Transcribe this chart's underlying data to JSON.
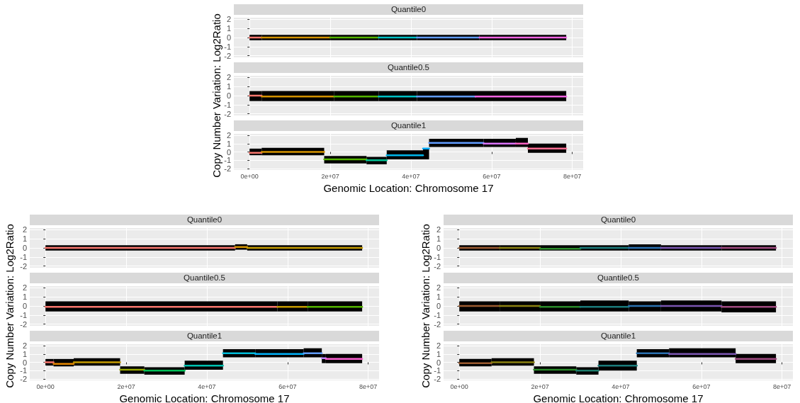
{
  "chart_data": [
    {
      "type": "line",
      "title": "Quantile0",
      "xlim": [
        -3900000,
        82700000
      ],
      "ylim": [
        -2.2,
        2.2
      ],
      "xticks": [
        {
          "value": 0,
          "label": null
        },
        {
          "value": 20000000,
          "label": null
        },
        {
          "value": 40000000,
          "label": null
        },
        {
          "value": 60000000,
          "label": null
        },
        {
          "value": 80000000,
          "label": null
        }
      ],
      "yticks": [
        -2,
        -1,
        0,
        1,
        2
      ],
      "grid": true,
      "tick_labels": "y",
      "marker": "none",
      "series": [
        {
          "color": "#f8766d",
          "x": [
            0,
            3000000
          ],
          "values": [
            0,
            0
          ],
          "lower": [
            -0.3,
            -0.3
          ],
          "upper": [
            0.3,
            0.3
          ]
        },
        {
          "color": "#d39200",
          "x": [
            3000000,
            20000000
          ],
          "values": [
            0,
            0
          ],
          "lower": [
            -0.3,
            -0.3
          ],
          "upper": [
            0.3,
            0.3
          ]
        },
        {
          "color": "#53b400",
          "x": [
            20000000,
            32000000
          ],
          "values": [
            0,
            0
          ],
          "lower": [
            -0.3,
            -0.3
          ],
          "upper": [
            0.3,
            0.3
          ]
        },
        {
          "color": "#00bfc4",
          "x": [
            32000000,
            41500000
          ],
          "values": [
            0,
            0
          ],
          "lower": [
            -0.3,
            -0.3
          ],
          "upper": [
            0.3,
            0.3
          ]
        },
        {
          "color": "#619cff",
          "x": [
            41500000,
            57000000
          ],
          "values": [
            0,
            0
          ],
          "lower": [
            -0.3,
            -0.3
          ],
          "upper": [
            0.3,
            0.3
          ]
        },
        {
          "color": "#f564e3",
          "x": [
            57000000,
            78500000
          ],
          "values": [
            0,
            0
          ],
          "lower": [
            -0.3,
            -0.3
          ],
          "upper": [
            0.3,
            0.3
          ]
        }
      ]
    },
    {
      "type": "line",
      "title": "Quantile0.5",
      "ylabel": "Copy Number Variation: Log2Ratio",
      "xlim": [
        -3900000,
        82700000
      ],
      "ylim": [
        -2.2,
        2.2
      ],
      "xticks": [
        {
          "value": 0,
          "label": null
        },
        {
          "value": 20000000,
          "label": null
        },
        {
          "value": 40000000,
          "label": null
        },
        {
          "value": 60000000,
          "label": null
        },
        {
          "value": 80000000,
          "label": null
        }
      ],
      "yticks": [
        -2,
        -1,
        0,
        1,
        2
      ],
      "grid": true,
      "tick_labels": "y",
      "marker": "none",
      "series": [
        {
          "color": "#f8766d",
          "x": [
            0,
            3000000
          ],
          "values": [
            0,
            0
          ],
          "lower": [
            -0.6,
            -0.6
          ],
          "upper": [
            0.5,
            0.5
          ]
        },
        {
          "color": "#d39200",
          "x": [
            3000000,
            21000000
          ],
          "values": [
            -0.1,
            -0.1
          ],
          "lower": [
            -0.6,
            -0.6
          ],
          "upper": [
            0.5,
            0.5
          ]
        },
        {
          "color": "#53b400",
          "x": [
            21000000,
            32000000
          ],
          "values": [
            -0.1,
            -0.1
          ],
          "lower": [
            -0.6,
            -0.6
          ],
          "upper": [
            0.5,
            0.5
          ]
        },
        {
          "color": "#00bfc4",
          "x": [
            32000000,
            41500000
          ],
          "values": [
            -0.1,
            -0.1
          ],
          "lower": [
            -0.6,
            -0.6
          ],
          "upper": [
            0.5,
            0.5
          ]
        },
        {
          "color": "#619cff",
          "x": [
            41500000,
            56000000
          ],
          "values": [
            -0.1,
            -0.1
          ],
          "lower": [
            -0.6,
            -0.6
          ],
          "upper": [
            0.5,
            0.5
          ]
        },
        {
          "color": "#f564e3",
          "x": [
            56000000,
            78500000
          ],
          "values": [
            -0.1,
            -0.1
          ],
          "lower": [
            -0.6,
            -0.6
          ],
          "upper": [
            0.5,
            0.5
          ]
        }
      ]
    },
    {
      "type": "line",
      "title": "Quantile1",
      "xlabel": "Genomic Location: Chromosome 17",
      "xlim": [
        -3900000,
        82700000
      ],
      "ylim": [
        -2.2,
        2.2
      ],
      "xticks": [
        {
          "value": 0,
          "label": "0e+00"
        },
        {
          "value": 20000000,
          "label": "2e+07"
        },
        {
          "value": 40000000,
          "label": "4e+07"
        },
        {
          "value": 60000000,
          "label": "6e+07"
        },
        {
          "value": 80000000,
          "label": "8e+07"
        }
      ],
      "yticks": [
        -2,
        -1,
        0,
        1,
        2
      ],
      "grid": true,
      "marker": "none",
      "series": [
        {
          "color": "#f8766d",
          "x": [
            0,
            3000000
          ],
          "values": [
            -0.1,
            -0.1
          ],
          "lower": [
            -0.4,
            -0.4
          ],
          "upper": [
            0.4,
            0.4
          ]
        },
        {
          "color": "#d39200",
          "x": [
            3000000,
            18500000
          ],
          "values": [
            0,
            0
          ],
          "lower": [
            -0.4,
            -0.4
          ],
          "upper": [
            0.5,
            0.5
          ]
        },
        {
          "color": "#53b400",
          "x": [
            18500000,
            29000000
          ],
          "values": [
            -0.9,
            -0.9
          ],
          "lower": [
            -1.4,
            -1.4
          ],
          "upper": [
            -0.5,
            -0.5
          ]
        },
        {
          "color": "#00c094",
          "x": [
            29000000,
            34000000
          ],
          "values": [
            -1,
            -1
          ],
          "lower": [
            -1.5,
            -1.5
          ],
          "upper": [
            -0.6,
            -0.6
          ]
        },
        {
          "color": "#00b6eb",
          "x": [
            34000000,
            43000000
          ],
          "values": [
            -0.4,
            -0.4
          ],
          "lower": [
            -0.9,
            -0.9
          ],
          "upper": [
            0.2,
            0.2
          ]
        },
        {
          "color": "#00a9ff",
          "x": [
            43000000,
            44500000
          ],
          "values": [
            0.4,
            0.4
          ],
          "lower": [
            -0.9,
            -0.9
          ],
          "upper": [
            0.3,
            0.3
          ]
        },
        {
          "color": "#619cff",
          "x": [
            44500000,
            58000000
          ],
          "values": [
            1.1,
            1.1
          ],
          "lower": [
            0.6,
            0.6
          ],
          "upper": [
            1.6,
            1.6
          ]
        },
        {
          "color": "#db72fb",
          "x": [
            58000000,
            66000000
          ],
          "values": [
            1,
            1
          ],
          "lower": [
            0.6,
            0.6
          ],
          "upper": [
            1.6,
            1.6
          ]
        },
        {
          "color": "#ff61c3",
          "x": [
            66000000,
            69000000
          ],
          "values": [
            1,
            1
          ],
          "lower": [
            0.6,
            0.6
          ],
          "upper": [
            1.7,
            1.7
          ]
        },
        {
          "color": "#ff6c91",
          "x": [
            69000000,
            78500000
          ],
          "values": [
            0.4,
            0.4
          ],
          "lower": [
            -0.1,
            -0.1
          ],
          "upper": [
            1,
            1
          ]
        }
      ]
    },
    {
      "type": "line",
      "title": "Quantile0",
      "xlim": [
        -3900000,
        82700000
      ],
      "ylim": [
        -2.2,
        2.2
      ],
      "xticks": [
        {
          "value": 0,
          "label": null
        },
        {
          "value": 20000000,
          "label": null
        },
        {
          "value": 40000000,
          "label": null
        },
        {
          "value": 60000000,
          "label": null
        },
        {
          "value": 80000000,
          "label": null
        }
      ],
      "yticks": [
        -2,
        -1,
        0,
        1,
        2
      ],
      "grid": true,
      "tick_labels": "y",
      "marker": "none",
      "series": [
        {
          "color": "#f8766d",
          "x": [
            0,
            47000000
          ],
          "values": [
            0,
            0
          ],
          "lower": [
            -0.3,
            -0.3
          ],
          "upper": [
            0.3,
            0.3
          ]
        },
        {
          "color": "#d39200",
          "x": [
            47000000,
            50000000
          ],
          "values": [
            0.1,
            0.1
          ],
          "lower": [
            -0.2,
            -0.2
          ],
          "upper": [
            0.4,
            0.4
          ]
        },
        {
          "color": "#c49a00",
          "x": [
            50000000,
            78500000
          ],
          "values": [
            0,
            0
          ],
          "lower": [
            -0.3,
            -0.3
          ],
          "upper": [
            0.3,
            0.3
          ]
        }
      ]
    },
    {
      "type": "line",
      "title": "Quantile0.5",
      "ylabel": "Copy Number Variation: Log2Ratio",
      "xlim": [
        -3900000,
        82700000
      ],
      "ylim": [
        -2.2,
        2.2
      ],
      "xticks": [
        {
          "value": 0,
          "label": null
        },
        {
          "value": 20000000,
          "label": null
        },
        {
          "value": 40000000,
          "label": null
        },
        {
          "value": 60000000,
          "label": null
        },
        {
          "value": 80000000,
          "label": null
        }
      ],
      "yticks": [
        -2,
        -1,
        0,
        1,
        2
      ],
      "grid": true,
      "tick_labels": "y",
      "marker": "none",
      "series": [
        {
          "color": "#f8766d",
          "x": [
            0,
            57500000
          ],
          "values": [
            -0.1,
            -0.1
          ],
          "lower": [
            -0.6,
            -0.6
          ],
          "upper": [
            0.5,
            0.5
          ]
        },
        {
          "color": "#c49a00",
          "x": [
            57500000,
            65000000
          ],
          "values": [
            -0.1,
            -0.1
          ],
          "lower": [
            -0.6,
            -0.6
          ],
          "upper": [
            0.5,
            0.5
          ]
        },
        {
          "color": "#53b400",
          "x": [
            65000000,
            78500000
          ],
          "values": [
            -0.1,
            -0.1
          ],
          "lower": [
            -0.6,
            -0.6
          ],
          "upper": [
            0.5,
            0.5
          ]
        }
      ]
    },
    {
      "type": "line",
      "title": "Quantile1",
      "xlabel": "Genomic Location: Chromosome 17",
      "xlim": [
        -3900000,
        82700000
      ],
      "ylim": [
        -2.2,
        2.2
      ],
      "xticks": [
        {
          "value": 0,
          "label": "0e+00"
        },
        {
          "value": 20000000,
          "label": "2e+07"
        },
        {
          "value": 40000000,
          "label": "4e+07"
        },
        {
          "value": 60000000,
          "label": "6e+07"
        },
        {
          "value": 80000000,
          "label": "8e+07"
        }
      ],
      "yticks": [
        -2,
        -1,
        0,
        1,
        2
      ],
      "grid": true,
      "marker": "none",
      "series": [
        {
          "color": "#f8766d",
          "x": [
            0,
            2000000
          ],
          "values": [
            0,
            0
          ],
          "lower": [
            -0.4,
            -0.4
          ],
          "upper": [
            0.4,
            0.4
          ]
        },
        {
          "color": "#e58700",
          "x": [
            2000000,
            7000000
          ],
          "values": [
            -0.2,
            -0.2
          ],
          "lower": [
            -0.5,
            -0.5
          ],
          "upper": [
            0.4,
            0.4
          ]
        },
        {
          "color": "#c49a00",
          "x": [
            7000000,
            18500000
          ],
          "values": [
            0,
            0
          ],
          "lower": [
            -0.4,
            -0.4
          ],
          "upper": [
            0.5,
            0.5
          ]
        },
        {
          "color": "#99a800",
          "x": [
            18500000,
            24500000
          ],
          "values": [
            -0.9,
            -0.9
          ],
          "lower": [
            -1.4,
            -1.4
          ],
          "upper": [
            -0.5,
            -0.5
          ]
        },
        {
          "color": "#00bc56",
          "x": [
            24500000,
            34500000
          ],
          "values": [
            -1,
            -1
          ],
          "lower": [
            -1.5,
            -1.5
          ],
          "upper": [
            -0.6,
            -0.6
          ]
        },
        {
          "color": "#00c0af",
          "x": [
            34500000,
            44000000
          ],
          "values": [
            -0.4,
            -0.4
          ],
          "lower": [
            -0.9,
            -0.9
          ],
          "upper": [
            0.2,
            0.2
          ]
        },
        {
          "color": "#00bcd8",
          "x": [
            44000000,
            52000000
          ],
          "values": [
            1.1,
            1.1
          ],
          "lower": [
            0.6,
            0.6
          ],
          "upper": [
            1.6,
            1.6
          ]
        },
        {
          "color": "#00b0f6",
          "x": [
            52000000,
            64000000
          ],
          "values": [
            1,
            1
          ],
          "lower": [
            0.6,
            0.6
          ],
          "upper": [
            1.6,
            1.6
          ]
        },
        {
          "color": "#619cff",
          "x": [
            64000000,
            68500000
          ],
          "values": [
            1.1,
            1.1
          ],
          "lower": [
            0.6,
            0.6
          ],
          "upper": [
            1.7,
            1.7
          ]
        },
        {
          "color": "#b983ff",
          "x": [
            68500000,
            69500000
          ],
          "values": [
            0.5,
            0.5
          ],
          "lower": [
            -0.1,
            -0.1
          ],
          "upper": [
            1,
            1
          ]
        },
        {
          "color": "#fd61d1",
          "x": [
            69500000,
            78500000
          ],
          "values": [
            0.4,
            0.4
          ],
          "lower": [
            -0.1,
            -0.1
          ],
          "upper": [
            1,
            1
          ]
        }
      ]
    },
    {
      "type": "line",
      "title": "Quantile0",
      "xlim": [
        -3900000,
        82700000
      ],
      "ylim": [
        -2.2,
        2.2
      ],
      "xticks": [
        {
          "value": 0,
          "label": null
        },
        {
          "value": 20000000,
          "label": null
        },
        {
          "value": 40000000,
          "label": null
        },
        {
          "value": 60000000,
          "label": null
        },
        {
          "value": 80000000,
          "label": null
        }
      ],
      "yticks": [
        -2,
        -1,
        0,
        1,
        2
      ],
      "grid": true,
      "tick_labels": "y",
      "marker": "none",
      "series": [
        {
          "color": "#9a5a30",
          "x": [
            0,
            10000000
          ],
          "values": [
            0,
            0
          ],
          "lower": [
            -0.3,
            -0.3
          ],
          "upper": [
            0.3,
            0.3
          ]
        },
        {
          "color": "#8a8010",
          "x": [
            10000000,
            20000000
          ],
          "values": [
            0,
            0
          ],
          "lower": [
            -0.3,
            -0.3
          ],
          "upper": [
            0.3,
            0.3
          ]
        },
        {
          "color": "#2a8a2a",
          "x": [
            20000000,
            30000000
          ],
          "values": [
            -0.1,
            -0.1
          ],
          "lower": [
            -0.3,
            -0.3
          ],
          "upper": [
            0.3,
            0.3
          ]
        },
        {
          "color": "#1a7a7a",
          "x": [
            30000000,
            42000000
          ],
          "values": [
            0,
            0
          ],
          "lower": [
            -0.3,
            -0.3
          ],
          "upper": [
            0.3,
            0.3
          ]
        },
        {
          "color": "#2a70b0",
          "x": [
            42000000,
            50000000
          ],
          "values": [
            0,
            0
          ],
          "lower": [
            -0.3,
            -0.3
          ],
          "upper": [
            0.4,
            0.4
          ]
        },
        {
          "color": "#7a55b0",
          "x": [
            50000000,
            65000000
          ],
          "values": [
            0,
            0
          ],
          "lower": [
            -0.3,
            -0.3
          ],
          "upper": [
            0.3,
            0.3
          ]
        },
        {
          "color": "#a04a80",
          "x": [
            65000000,
            78500000
          ],
          "values": [
            0,
            0
          ],
          "lower": [
            -0.3,
            -0.3
          ],
          "upper": [
            0.3,
            0.3
          ]
        }
      ]
    },
    {
      "type": "line",
      "title": "Quantile0.5",
      "ylabel": "Copy Number Variation: Log2Ratio",
      "xlim": [
        -3900000,
        82700000
      ],
      "ylim": [
        -2.2,
        2.2
      ],
      "xticks": [
        {
          "value": 0,
          "label": null
        },
        {
          "value": 20000000,
          "label": null
        },
        {
          "value": 40000000,
          "label": null
        },
        {
          "value": 60000000,
          "label": null
        },
        {
          "value": 80000000,
          "label": null
        }
      ],
      "yticks": [
        -2,
        -1,
        0,
        1,
        2
      ],
      "grid": true,
      "tick_labels": "y",
      "marker": "none",
      "series": [
        {
          "color": "#9a5a30",
          "x": [
            0,
            10000000
          ],
          "values": [
            0,
            0
          ],
          "lower": [
            -0.6,
            -0.6
          ],
          "upper": [
            0.5,
            0.5
          ]
        },
        {
          "color": "#8a8010",
          "x": [
            10000000,
            20000000
          ],
          "values": [
            0,
            0
          ],
          "lower": [
            -0.6,
            -0.6
          ],
          "upper": [
            0.5,
            0.5
          ]
        },
        {
          "color": "#2a8a2a",
          "x": [
            20000000,
            30000000
          ],
          "values": [
            -0.1,
            -0.1
          ],
          "lower": [
            -0.6,
            -0.6
          ],
          "upper": [
            0.5,
            0.5
          ]
        },
        {
          "color": "#1a7a7a",
          "x": [
            30000000,
            42000000
          ],
          "values": [
            -0.1,
            -0.1
          ],
          "lower": [
            -0.6,
            -0.6
          ],
          "upper": [
            0.6,
            0.6
          ]
        },
        {
          "color": "#2a70b0",
          "x": [
            42000000,
            50000000
          ],
          "values": [
            0,
            0
          ],
          "lower": [
            -0.6,
            -0.6
          ],
          "upper": [
            0.5,
            0.5
          ]
        },
        {
          "color": "#7a55b0",
          "x": [
            50000000,
            65000000
          ],
          "values": [
            0,
            0
          ],
          "lower": [
            -0.6,
            -0.6
          ],
          "upper": [
            0.6,
            0.6
          ]
        },
        {
          "color": "#a04a80",
          "x": [
            65000000,
            78500000
          ],
          "values": [
            -0.1,
            -0.1
          ],
          "lower": [
            -0.7,
            -0.7
          ],
          "upper": [
            0.5,
            0.5
          ]
        }
      ]
    },
    {
      "type": "line",
      "title": "Quantile1",
      "xlabel": "Genomic Location: Chromosome 17",
      "xlim": [
        -3900000,
        82700000
      ],
      "ylim": [
        -2.2,
        2.2
      ],
      "xticks": [
        {
          "value": 0,
          "label": "0e+00"
        },
        {
          "value": 20000000,
          "label": "2e+07"
        },
        {
          "value": 40000000,
          "label": "4e+07"
        },
        {
          "value": 60000000,
          "label": "6e+07"
        },
        {
          "value": 80000000,
          "label": "8e+07"
        }
      ],
      "yticks": [
        -2,
        -1,
        0,
        1,
        2
      ],
      "grid": true,
      "marker": "none",
      "series": [
        {
          "color": "#9a5a30",
          "x": [
            0,
            8000000
          ],
          "values": [
            -0.1,
            -0.1
          ],
          "lower": [
            -0.5,
            -0.5
          ],
          "upper": [
            0.4,
            0.4
          ]
        },
        {
          "color": "#8a8010",
          "x": [
            8000000,
            18500000
          ],
          "values": [
            0,
            0
          ],
          "lower": [
            -0.4,
            -0.4
          ],
          "upper": [
            0.5,
            0.5
          ]
        },
        {
          "color": "#2a8a2a",
          "x": [
            18500000,
            29000000
          ],
          "values": [
            -0.9,
            -0.9
          ],
          "lower": [
            -1.4,
            -1.4
          ],
          "upper": [
            -0.5,
            -0.5
          ]
        },
        {
          "color": "#1a7a6a",
          "x": [
            29000000,
            34500000
          ],
          "values": [
            -1,
            -1
          ],
          "lower": [
            -1.5,
            -1.5
          ],
          "upper": [
            -0.6,
            -0.6
          ]
        },
        {
          "color": "#1a7a7a",
          "x": [
            34500000,
            44000000
          ],
          "values": [
            -0.4,
            -0.4
          ],
          "lower": [
            -1,
            -1
          ],
          "upper": [
            0.2,
            0.2
          ]
        },
        {
          "color": "#2a70b0",
          "x": [
            44000000,
            52000000
          ],
          "values": [
            1.1,
            1.1
          ],
          "lower": [
            0.6,
            0.6
          ],
          "upper": [
            1.6,
            1.6
          ]
        },
        {
          "color": "#7a55b0",
          "x": [
            52000000,
            68500000
          ],
          "values": [
            1,
            1
          ],
          "lower": [
            0.6,
            0.6
          ],
          "upper": [
            1.7,
            1.7
          ]
        },
        {
          "color": "#a04a80",
          "x": [
            68500000,
            78500000
          ],
          "values": [
            0.4,
            0.4
          ],
          "lower": [
            -0.1,
            -0.1
          ],
          "upper": [
            1,
            1
          ]
        }
      ]
    }
  ]
}
